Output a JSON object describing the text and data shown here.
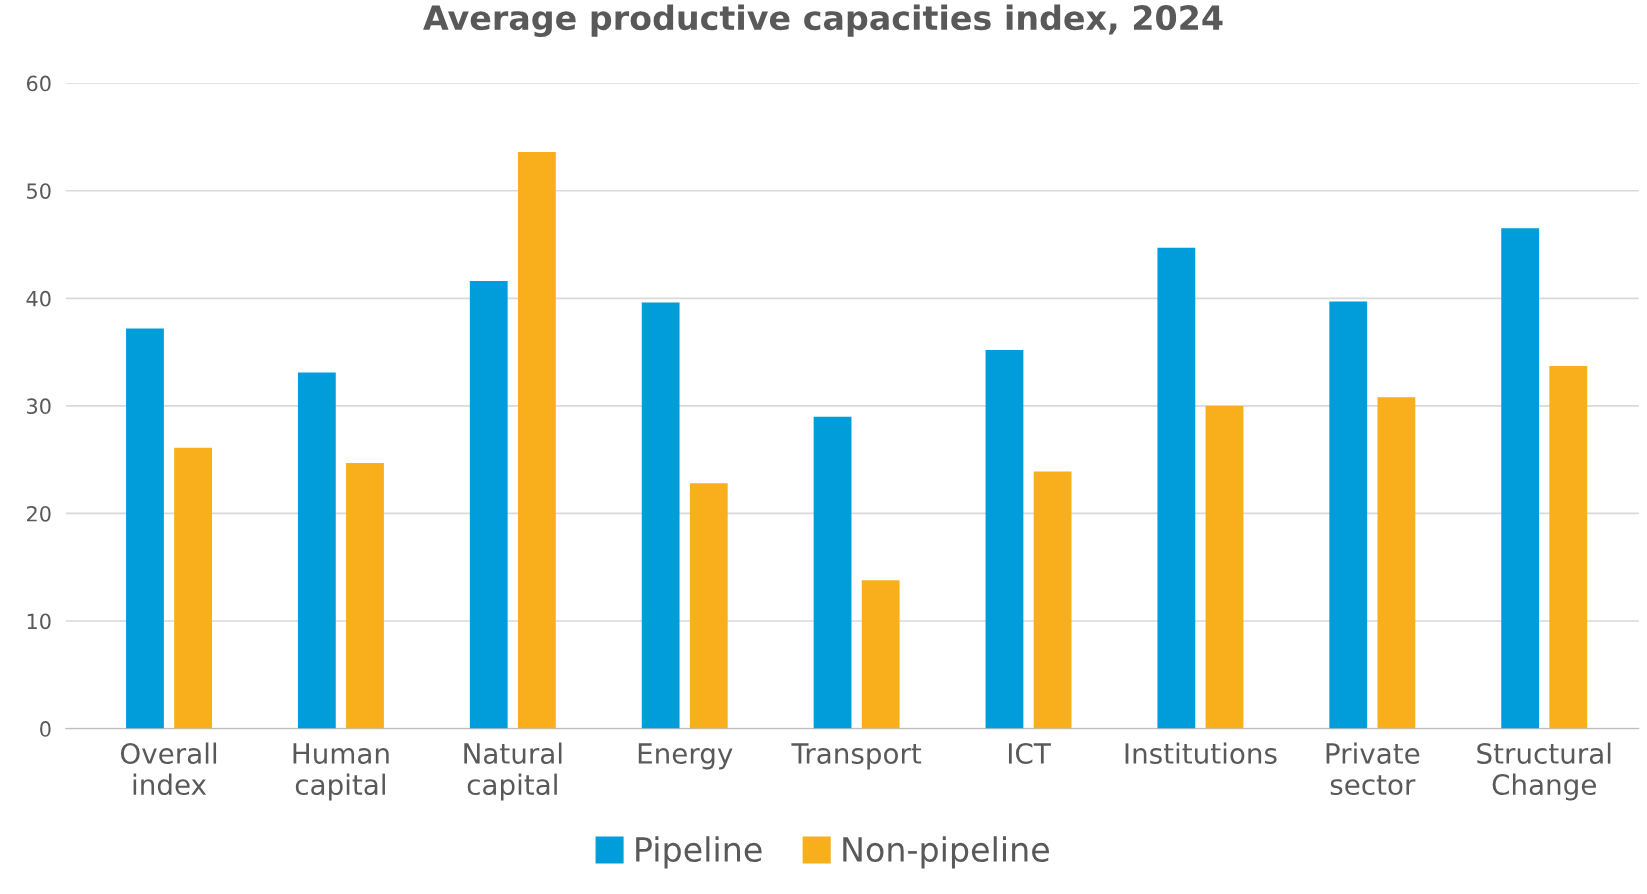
{
  "chart_data": {
    "type": "bar",
    "title": "Average productive capacities index, 2024",
    "categories": [
      "Overall index",
      "Human capital",
      "Natural capital",
      "Energy",
      "Transport",
      "ICT",
      "Institutions",
      "Private sector",
      "Structural Change"
    ],
    "series": [
      {
        "name": "Pipeline",
        "color": "#009ddb",
        "values": [
          37.2,
          33.1,
          41.6,
          39.6,
          29.0,
          35.2,
          44.7,
          39.7,
          46.5
        ]
      },
      {
        "name": "Non-pipeline",
        "color": "#f9ae1b",
        "values": [
          26.1,
          24.7,
          53.6,
          22.8,
          13.8,
          23.9,
          30.0,
          30.8,
          33.7
        ]
      }
    ],
    "ylim": [
      0,
      60
    ],
    "yticks": [
      0,
      10,
      20,
      30,
      40,
      50,
      60
    ],
    "grid": "y",
    "legend": "bottom"
  }
}
